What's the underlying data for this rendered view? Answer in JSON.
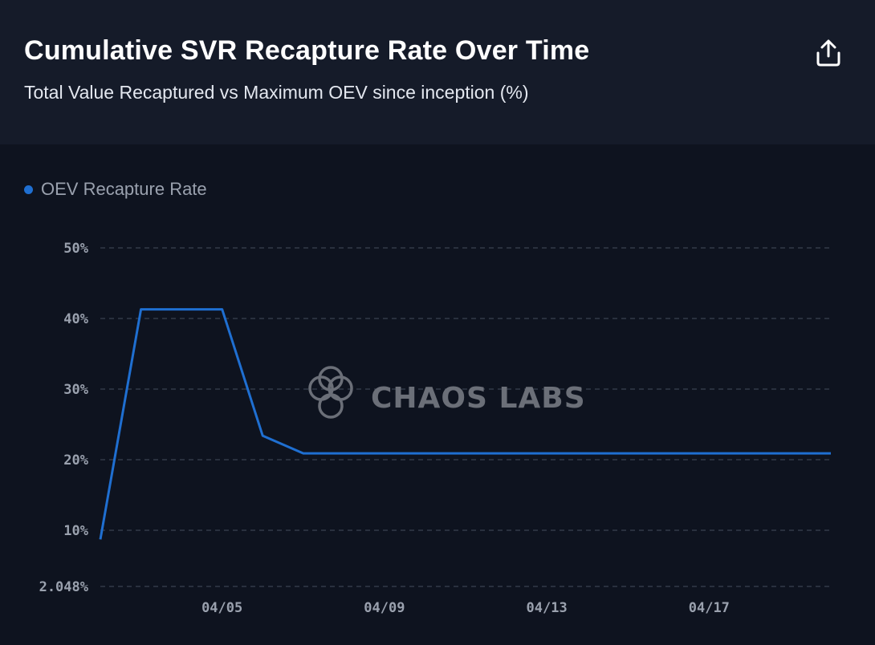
{
  "header": {
    "title": "Cumulative SVR Recapture Rate Over Time",
    "subtitle": "Total Value Recaptured vs Maximum OEV since inception (%)",
    "share_icon": "share-upload-icon"
  },
  "watermark": {
    "text": "CHAOS LABS",
    "icon": "chaos-labs-logo-icon"
  },
  "colors": {
    "line": "#1f6fd1",
    "grid": "#3a4150",
    "background": "#0e131f",
    "header_bg": "#151b29"
  },
  "chart_data": {
    "type": "line",
    "title": "Cumulative SVR Recapture Rate Over Time",
    "subtitle": "Total Value Recaptured vs Maximum OEV since inception (%)",
    "legend": [
      {
        "label": "OEV Recapture Rate",
        "color": "#1f6fd1"
      }
    ],
    "legend_position": "top-left",
    "x": [
      "04/02",
      "04/03",
      "04/04",
      "04/05",
      "04/06",
      "04/07",
      "04/08",
      "04/09",
      "04/10",
      "04/11",
      "04/12",
      "04/13",
      "04/14",
      "04/15",
      "04/16",
      "04/17",
      "04/18",
      "04/19",
      "04/20"
    ],
    "x_ticks": [
      "04/05",
      "04/09",
      "04/13",
      "04/17"
    ],
    "series": [
      {
        "name": "OEV Recapture Rate",
        "values": [
          8.7,
          41.3,
          41.3,
          41.3,
          23.4,
          20.9,
          20.9,
          20.9,
          20.9,
          20.9,
          20.9,
          20.9,
          20.9,
          20.9,
          20.9,
          20.9,
          20.9,
          20.9,
          20.9
        ]
      }
    ],
    "y_ticks": [
      2.048,
      10,
      20,
      30,
      40,
      50
    ],
    "y_tick_labels": [
      "2.048%",
      "10%",
      "20%",
      "30%",
      "40%",
      "50%"
    ],
    "ylim": [
      2.048,
      50
    ],
    "grid": true,
    "xlabel": "",
    "ylabel": ""
  }
}
